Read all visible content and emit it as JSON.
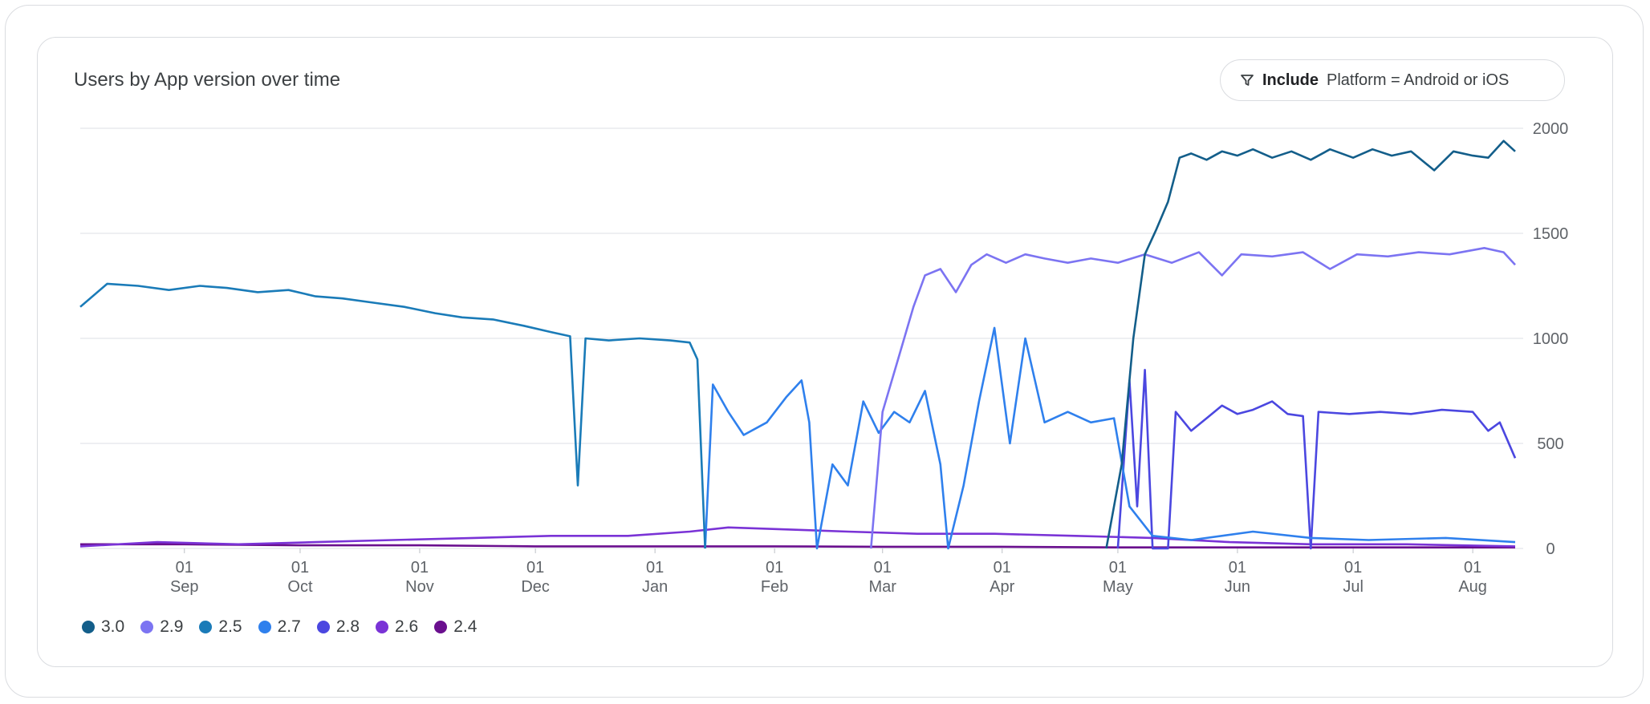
{
  "card": {
    "title": "Users by App version over time",
    "filter": {
      "icon": "filter-icon",
      "keyword": "Include",
      "expression": "Platform = Android or iOS"
    }
  },
  "colors": {
    "3.0": "#135e8a",
    "2.9": "#7c74f2",
    "2.5": "#1a7bb8",
    "2.7": "#2f80ed",
    "2.8": "#4b47e0",
    "2.6": "#7a33d6",
    "2.4": "#6a0f8e"
  },
  "chart_data": {
    "type": "line",
    "title": "Users by App version over time",
    "xlabel": "",
    "ylabel": "",
    "ylim": [
      0,
      2000
    ],
    "y_ticks": [
      "0",
      "500",
      "1000",
      "1500",
      "2000"
    ],
    "y_axis_side": "right",
    "grid": true,
    "legend_position": "bottom-left",
    "x_range": [
      "2024-08-05",
      "2025-08-12"
    ],
    "x_ticks": [
      {
        "day": "01",
        "month": "Sep",
        "date": "2024-09-01"
      },
      {
        "day": "01",
        "month": "Oct",
        "date": "2024-10-01"
      },
      {
        "day": "01",
        "month": "Nov",
        "date": "2024-11-01"
      },
      {
        "day": "01",
        "month": "Dec",
        "date": "2024-12-01"
      },
      {
        "day": "01",
        "month": "Jan",
        "date": "2025-01-01"
      },
      {
        "day": "01",
        "month": "Feb",
        "date": "2025-02-01"
      },
      {
        "day": "01",
        "month": "Mar",
        "date": "2025-03-01"
      },
      {
        "day": "01",
        "month": "Apr",
        "date": "2025-04-01"
      },
      {
        "day": "01",
        "month": "May",
        "date": "2025-05-01"
      },
      {
        "day": "01",
        "month": "Jun",
        "date": "2025-06-01"
      },
      {
        "day": "01",
        "month": "Jul",
        "date": "2025-07-01"
      },
      {
        "day": "01",
        "month": "Aug",
        "date": "2025-08-01"
      }
    ],
    "series": [
      {
        "name": "3.0",
        "points": [
          [
            "2025-04-28",
            0
          ],
          [
            "2025-05-02",
            400
          ],
          [
            "2025-05-05",
            1000
          ],
          [
            "2025-05-08",
            1400
          ],
          [
            "2025-05-11",
            1520
          ],
          [
            "2025-05-14",
            1650
          ],
          [
            "2025-05-17",
            1860
          ],
          [
            "2025-05-20",
            1880
          ],
          [
            "2025-05-24",
            1850
          ],
          [
            "2025-05-28",
            1890
          ],
          [
            "2025-06-01",
            1870
          ],
          [
            "2025-06-05",
            1900
          ],
          [
            "2025-06-10",
            1860
          ],
          [
            "2025-06-15",
            1890
          ],
          [
            "2025-06-20",
            1850
          ],
          [
            "2025-06-25",
            1900
          ],
          [
            "2025-07-01",
            1860
          ],
          [
            "2025-07-06",
            1900
          ],
          [
            "2025-07-11",
            1870
          ],
          [
            "2025-07-16",
            1890
          ],
          [
            "2025-07-22",
            1800
          ],
          [
            "2025-07-27",
            1890
          ],
          [
            "2025-08-01",
            1870
          ],
          [
            "2025-08-05",
            1860
          ],
          [
            "2025-08-09",
            1940
          ],
          [
            "2025-08-12",
            1890
          ]
        ]
      },
      {
        "name": "2.9",
        "points": [
          [
            "2025-02-26",
            0
          ],
          [
            "2025-03-01",
            650
          ],
          [
            "2025-03-05",
            900
          ],
          [
            "2025-03-09",
            1150
          ],
          [
            "2025-03-12",
            1300
          ],
          [
            "2025-03-16",
            1330
          ],
          [
            "2025-03-20",
            1220
          ],
          [
            "2025-03-24",
            1350
          ],
          [
            "2025-03-28",
            1400
          ],
          [
            "2025-04-02",
            1360
          ],
          [
            "2025-04-07",
            1400
          ],
          [
            "2025-04-12",
            1380
          ],
          [
            "2025-04-18",
            1360
          ],
          [
            "2025-04-24",
            1380
          ],
          [
            "2025-05-01",
            1360
          ],
          [
            "2025-05-08",
            1400
          ],
          [
            "2025-05-15",
            1360
          ],
          [
            "2025-05-22",
            1410
          ],
          [
            "2025-05-28",
            1300
          ],
          [
            "2025-06-02",
            1400
          ],
          [
            "2025-06-10",
            1390
          ],
          [
            "2025-06-18",
            1410
          ],
          [
            "2025-06-25",
            1330
          ],
          [
            "2025-07-02",
            1400
          ],
          [
            "2025-07-10",
            1390
          ],
          [
            "2025-07-18",
            1410
          ],
          [
            "2025-07-26",
            1400
          ],
          [
            "2025-08-04",
            1430
          ],
          [
            "2025-08-09",
            1410
          ],
          [
            "2025-08-12",
            1350
          ]
        ]
      },
      {
        "name": "2.5",
        "points": [
          [
            "2024-08-05",
            1150
          ],
          [
            "2024-08-12",
            1260
          ],
          [
            "2024-08-20",
            1250
          ],
          [
            "2024-08-28",
            1230
          ],
          [
            "2024-09-05",
            1250
          ],
          [
            "2024-09-12",
            1240
          ],
          [
            "2024-09-20",
            1220
          ],
          [
            "2024-09-28",
            1230
          ],
          [
            "2024-10-05",
            1200
          ],
          [
            "2024-10-12",
            1190
          ],
          [
            "2024-10-20",
            1170
          ],
          [
            "2024-10-28",
            1150
          ],
          [
            "2024-11-05",
            1120
          ],
          [
            "2024-11-12",
            1100
          ],
          [
            "2024-11-20",
            1090
          ],
          [
            "2024-11-28",
            1060
          ],
          [
            "2024-12-05",
            1030
          ],
          [
            "2024-12-10",
            1010
          ],
          [
            "2024-12-12",
            300
          ],
          [
            "2024-12-14",
            1000
          ],
          [
            "2024-12-20",
            990
          ],
          [
            "2024-12-28",
            1000
          ],
          [
            "2025-01-05",
            990
          ],
          [
            "2025-01-10",
            980
          ],
          [
            "2025-01-12",
            900
          ],
          [
            "2025-01-14",
            0
          ]
        ]
      },
      {
        "name": "2.7",
        "points": [
          [
            "2025-01-14",
            0
          ],
          [
            "2025-01-16",
            780
          ],
          [
            "2025-01-20",
            650
          ],
          [
            "2025-01-24",
            540
          ],
          [
            "2025-01-30",
            600
          ],
          [
            "2025-02-04",
            720
          ],
          [
            "2025-02-08",
            800
          ],
          [
            "2025-02-10",
            600
          ],
          [
            "2025-02-12",
            0
          ],
          [
            "2025-02-16",
            400
          ],
          [
            "2025-02-20",
            300
          ],
          [
            "2025-02-24",
            700
          ],
          [
            "2025-02-28",
            550
          ],
          [
            "2025-03-04",
            650
          ],
          [
            "2025-03-08",
            600
          ],
          [
            "2025-03-12",
            750
          ],
          [
            "2025-03-16",
            400
          ],
          [
            "2025-03-18",
            0
          ],
          [
            "2025-03-22",
            300
          ],
          [
            "2025-03-26",
            700
          ],
          [
            "2025-03-30",
            1050
          ],
          [
            "2025-04-03",
            500
          ],
          [
            "2025-04-07",
            1000
          ],
          [
            "2025-04-12",
            600
          ],
          [
            "2025-04-18",
            650
          ],
          [
            "2025-04-24",
            600
          ],
          [
            "2025-04-30",
            620
          ],
          [
            "2025-05-04",
            200
          ],
          [
            "2025-05-10",
            60
          ],
          [
            "2025-05-20",
            40
          ],
          [
            "2025-06-05",
            80
          ],
          [
            "2025-06-20",
            50
          ],
          [
            "2025-07-05",
            40
          ],
          [
            "2025-07-25",
            50
          ],
          [
            "2025-08-12",
            30
          ]
        ]
      },
      {
        "name": "2.8",
        "points": [
          [
            "2025-05-01",
            0
          ],
          [
            "2025-05-04",
            800
          ],
          [
            "2025-05-06",
            200
          ],
          [
            "2025-05-08",
            850
          ],
          [
            "2025-05-10",
            0
          ],
          [
            "2025-05-14",
            0
          ],
          [
            "2025-05-16",
            650
          ],
          [
            "2025-05-20",
            560
          ],
          [
            "2025-05-24",
            620
          ],
          [
            "2025-05-28",
            680
          ],
          [
            "2025-06-01",
            640
          ],
          [
            "2025-06-05",
            660
          ],
          [
            "2025-06-10",
            700
          ],
          [
            "2025-06-14",
            640
          ],
          [
            "2025-06-18",
            630
          ],
          [
            "2025-06-20",
            0
          ],
          [
            "2025-06-22",
            650
          ],
          [
            "2025-06-30",
            640
          ],
          [
            "2025-07-08",
            650
          ],
          [
            "2025-07-16",
            640
          ],
          [
            "2025-07-24",
            660
          ],
          [
            "2025-08-01",
            650
          ],
          [
            "2025-08-05",
            560
          ],
          [
            "2025-08-08",
            600
          ],
          [
            "2025-08-12",
            430
          ]
        ]
      },
      {
        "name": "2.6",
        "points": [
          [
            "2024-08-05",
            10
          ],
          [
            "2024-08-25",
            30
          ],
          [
            "2024-09-15",
            20
          ],
          [
            "2024-10-05",
            30
          ],
          [
            "2024-10-25",
            40
          ],
          [
            "2024-11-15",
            50
          ],
          [
            "2024-12-05",
            60
          ],
          [
            "2024-12-25",
            60
          ],
          [
            "2025-01-10",
            80
          ],
          [
            "2025-01-20",
            100
          ],
          [
            "2025-02-05",
            90
          ],
          [
            "2025-02-20",
            80
          ],
          [
            "2025-03-10",
            70
          ],
          [
            "2025-03-30",
            70
          ],
          [
            "2025-04-20",
            60
          ],
          [
            "2025-05-10",
            50
          ],
          [
            "2025-05-30",
            30
          ],
          [
            "2025-06-20",
            20
          ],
          [
            "2025-07-15",
            20
          ],
          [
            "2025-08-12",
            10
          ]
        ]
      },
      {
        "name": "2.4",
        "points": [
          [
            "2024-08-05",
            20
          ],
          [
            "2024-09-01",
            20
          ],
          [
            "2024-10-01",
            15
          ],
          [
            "2024-11-01",
            15
          ],
          [
            "2024-12-01",
            10
          ],
          [
            "2025-01-01",
            10
          ],
          [
            "2025-02-01",
            10
          ],
          [
            "2025-03-01",
            8
          ],
          [
            "2025-04-01",
            8
          ],
          [
            "2025-05-01",
            5
          ],
          [
            "2025-06-01",
            5
          ],
          [
            "2025-07-01",
            5
          ],
          [
            "2025-08-12",
            5
          ]
        ]
      }
    ]
  },
  "legend": [
    {
      "label": "3.0"
    },
    {
      "label": "2.9"
    },
    {
      "label": "2.5"
    },
    {
      "label": "2.7"
    },
    {
      "label": "2.8"
    },
    {
      "label": "2.6"
    },
    {
      "label": "2.4"
    }
  ]
}
